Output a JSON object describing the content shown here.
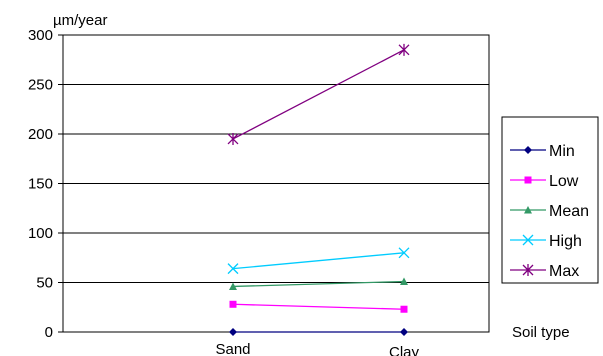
{
  "chart_data": {
    "type": "line",
    "title": "",
    "ylabel": "µm/year",
    "xlabel": "Soil type",
    "categories": [
      "Sand",
      "Clay"
    ],
    "ylim": [
      0,
      300
    ],
    "yticks": [
      0,
      50,
      100,
      150,
      200,
      250,
      300
    ],
    "grid": true,
    "legend_position": "right",
    "series": [
      {
        "name": "Min",
        "values": [
          0,
          0
        ],
        "color": "#000080",
        "marker": "diamond"
      },
      {
        "name": "Low",
        "values": [
          28,
          23
        ],
        "color": "#FF00FF",
        "marker": "square"
      },
      {
        "name": "Mean",
        "values": [
          46,
          51
        ],
        "color": "#339966",
        "marker": "triangle"
      },
      {
        "name": "High",
        "values": [
          64,
          80
        ],
        "color": "#00CCFF",
        "marker": "x"
      },
      {
        "name": "Max",
        "values": [
          195,
          285
        ],
        "color": "#800080",
        "marker": "star"
      }
    ]
  }
}
